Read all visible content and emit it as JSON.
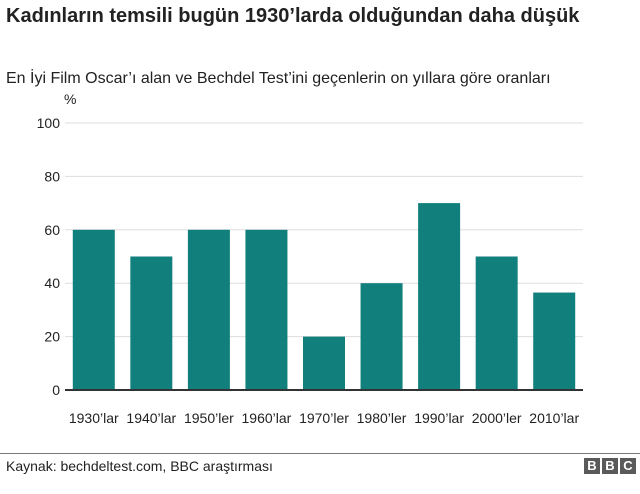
{
  "title": "Kadınların temsili bugün 1930’larda olduğundan daha düşük",
  "subtitle": "En İyi Film Oscar’ı alan ve Bechdel Test’ini geçenlerin on yıllara göre oranları",
  "source": "Kaynak: bechdeltest.com, BBC araştırması",
  "logo": [
    "B",
    "B",
    "C"
  ],
  "chart_data": {
    "type": "bar",
    "ylabel": "%",
    "ylim": [
      0,
      100
    ],
    "yticks": [
      0,
      20,
      40,
      60,
      80,
      100
    ],
    "grid": true,
    "bar_color": "#117f7c",
    "categories": [
      "1930’lar",
      "1940’lar",
      "1950’ler",
      "1960’lar",
      "1970’ler",
      "1980’ler",
      "1990’lar",
      "2000’ler",
      "2010’lar"
    ],
    "values": [
      60,
      50,
      60,
      60,
      20,
      40,
      70,
      50,
      36.5
    ]
  }
}
